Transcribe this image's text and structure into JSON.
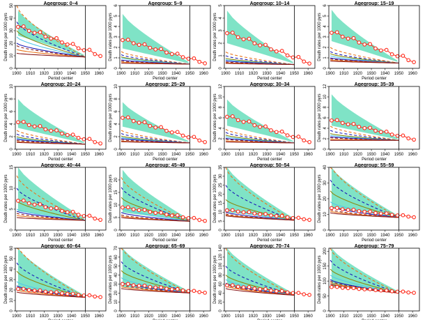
{
  "figure": {
    "xlabel": "Period center",
    "ylabel": "Death rates per 1000 pyrs",
    "x_ticks": [
      1900,
      1910,
      1920,
      1930,
      1940,
      1950,
      1960
    ],
    "xlim": [
      1899,
      1965
    ],
    "reference_year": 1950,
    "colors": {
      "band": "#7fe3c6",
      "observed": "#ff2b1c",
      "navy": "#1a1ab5",
      "darkred": "#8b1a1a",
      "orange": "#e8741a",
      "olive": "#8a8a10",
      "cyan": "#55c8e8"
    }
  },
  "chart_data": [
    {
      "type": "line",
      "title": "Agegroup:  0–4",
      "ylim": [
        0,
        50
      ],
      "yticks": [
        0,
        10,
        20,
        30,
        40,
        50
      ],
      "start": 33,
      "end": 9,
      "band": [
        26,
        46
      ],
      "curves": [
        50,
        37,
        30,
        25,
        20,
        18,
        15,
        12
      ]
    },
    {
      "type": "line",
      "title": "Agegroup:  5–9",
      "ylim": [
        0,
        6
      ],
      "yticks": [
        0,
        1,
        2,
        3,
        4,
        5,
        6
      ],
      "start": 2.7,
      "end": 0.4,
      "band": [
        1.9,
        5.2
      ],
      "curves": [
        1.6,
        1.3,
        1.1,
        1.0,
        0.8,
        0.7,
        0.6,
        0.5
      ]
    },
    {
      "type": "line",
      "title": "Agegroup:  10–14",
      "ylim": [
        0,
        5
      ],
      "yticks": [
        0,
        1,
        2,
        3,
        4,
        5
      ],
      "start": 2.8,
      "end": 0.3,
      "band": [
        2.0,
        4.6
      ],
      "curves": [
        1.3,
        1.0,
        0.8,
        0.7,
        0.6,
        0.5,
        0.45,
        0.4
      ]
    },
    {
      "type": "line",
      "title": "Agegroup:  15–19",
      "ylim": [
        0,
        6
      ],
      "yticks": [
        0,
        1,
        2,
        3,
        4,
        5,
        6
      ],
      "start": 3.4,
      "end": 0.5,
      "band": [
        2.6,
        5.6
      ],
      "curves": [
        2.0,
        1.6,
        1.4,
        1.2,
        1.0,
        0.9,
        0.8,
        0.7
      ]
    },
    {
      "type": "line",
      "title": "Agegroup:  20–24",
      "ylim": [
        0,
        10
      ],
      "yticks": [
        0,
        2,
        4,
        6,
        8,
        10
      ],
      "start": 4.3,
      "end": 0.8,
      "band": [
        3.4,
        8.0
      ],
      "curves": [
        3.0,
        2.4,
        2.0,
        1.8,
        1.6,
        1.4,
        1.2,
        1.1
      ]
    },
    {
      "type": "line",
      "title": "Agegroup:  25–29",
      "ylim": [
        0,
        10
      ],
      "yticks": [
        0,
        2,
        4,
        6,
        8,
        10
      ],
      "start": 5.0,
      "end": 1.0,
      "band": [
        3.6,
        7.5
      ],
      "curves": [
        3.0,
        2.5,
        2.1,
        1.9,
        1.7,
        1.5,
        1.3,
        1.2
      ]
    },
    {
      "type": "line",
      "title": "Agegroup:  30–34",
      "ylim": [
        0,
        12
      ],
      "yticks": [
        0,
        2,
        4,
        6,
        8,
        10,
        12
      ],
      "start": 6.2,
      "end": 1.2,
      "band": [
        4.5,
        9.5
      ],
      "curves": [
        3.8,
        3.2,
        2.7,
        2.4,
        2.1,
        1.9,
        1.6,
        1.4
      ]
    },
    {
      "type": "line",
      "title": "Agegroup:  35–39",
      "ylim": [
        0,
        12
      ],
      "yticks": [
        0,
        2,
        4,
        6,
        8,
        10,
        12
      ],
      "start": 5.5,
      "end": 1.7,
      "band": [
        4.5,
        10.5
      ],
      "curves": [
        4.4,
        3.6,
        3.0,
        2.7,
        2.4,
        2.2,
        1.9,
        1.7
      ]
    },
    {
      "type": "line",
      "title": "Agegroup:  40–44",
      "ylim": [
        0,
        15
      ],
      "yticks": [
        0,
        5,
        10,
        15
      ],
      "start": 7.0,
      "end": 2.3,
      "band": [
        4.5,
        15
      ],
      "curves": [
        13,
        10,
        7,
        5,
        4.5,
        4,
        3.5,
        3
      ]
    },
    {
      "type": "line",
      "title": "Agegroup:  45–49",
      "ylim": [
        0,
        25
      ],
      "yticks": [
        0,
        5,
        10,
        15,
        20
      ],
      "start": 9.0,
      "end": 3.5,
      "band": [
        7,
        24
      ],
      "curves": [
        21,
        17,
        13,
        9,
        7,
        6,
        5.5,
        5
      ]
    },
    {
      "type": "line",
      "title": "Agegroup:  50–54",
      "ylim": [
        0,
        35
      ],
      "yticks": [
        0,
        5,
        10,
        15,
        20,
        25,
        30,
        35
      ],
      "start": 11.0,
      "end": 5.5,
      "band": [
        10,
        35
      ],
      "curves": [
        35,
        25,
        17,
        12,
        10,
        9,
        8.5,
        8
      ]
    },
    {
      "type": "line",
      "title": "Agegroup:  55–59",
      "ylim": [
        0,
        40
      ],
      "yticks": [
        0,
        10,
        20,
        30,
        40
      ],
      "start": 14.0,
      "end": 8.0,
      "band": [
        14,
        40
      ],
      "curves": [
        42,
        32,
        25,
        18,
        15,
        13,
        12,
        11
      ]
    },
    {
      "type": "line",
      "title": "Agegroup:  60–64",
      "ylim": [
        0,
        60
      ],
      "yticks": [
        0,
        10,
        20,
        30,
        40,
        50,
        60
      ],
      "start": 21,
      "end": 13,
      "band": [
        20,
        60
      ],
      "curves": [
        64,
        46,
        38,
        28,
        24,
        22,
        20,
        18
      ]
    },
    {
      "type": "line",
      "title": "Agegroup:  65–69",
      "ylim": [
        0,
        70
      ],
      "yticks": [
        0,
        10,
        20,
        30,
        40,
        50,
        60,
        70
      ],
      "start": 30,
      "end": 20,
      "band": [
        27,
        70
      ],
      "curves": [
        72,
        55,
        45,
        37,
        32,
        29,
        27,
        25
      ]
    },
    {
      "type": "line",
      "title": "Agegroup:  70–74",
      "ylim": [
        0,
        140
      ],
      "yticks": [
        0,
        20,
        40,
        60,
        80,
        100,
        120,
        140
      ],
      "start": 57,
      "end": 35,
      "band": [
        55,
        140
      ],
      "curves": [
        140,
        100,
        80,
        70,
        62,
        58,
        55,
        50
      ]
    },
    {
      "type": "line",
      "title": "Agegroup:  75–79",
      "ylim": [
        0,
        210
      ],
      "yticks": [
        0,
        50,
        100,
        150,
        200
      ],
      "start": 80,
      "end": 60,
      "band": [
        80,
        210
      ],
      "curves": [
        210,
        170,
        140,
        120,
        105,
        100,
        95,
        90
      ]
    }
  ]
}
